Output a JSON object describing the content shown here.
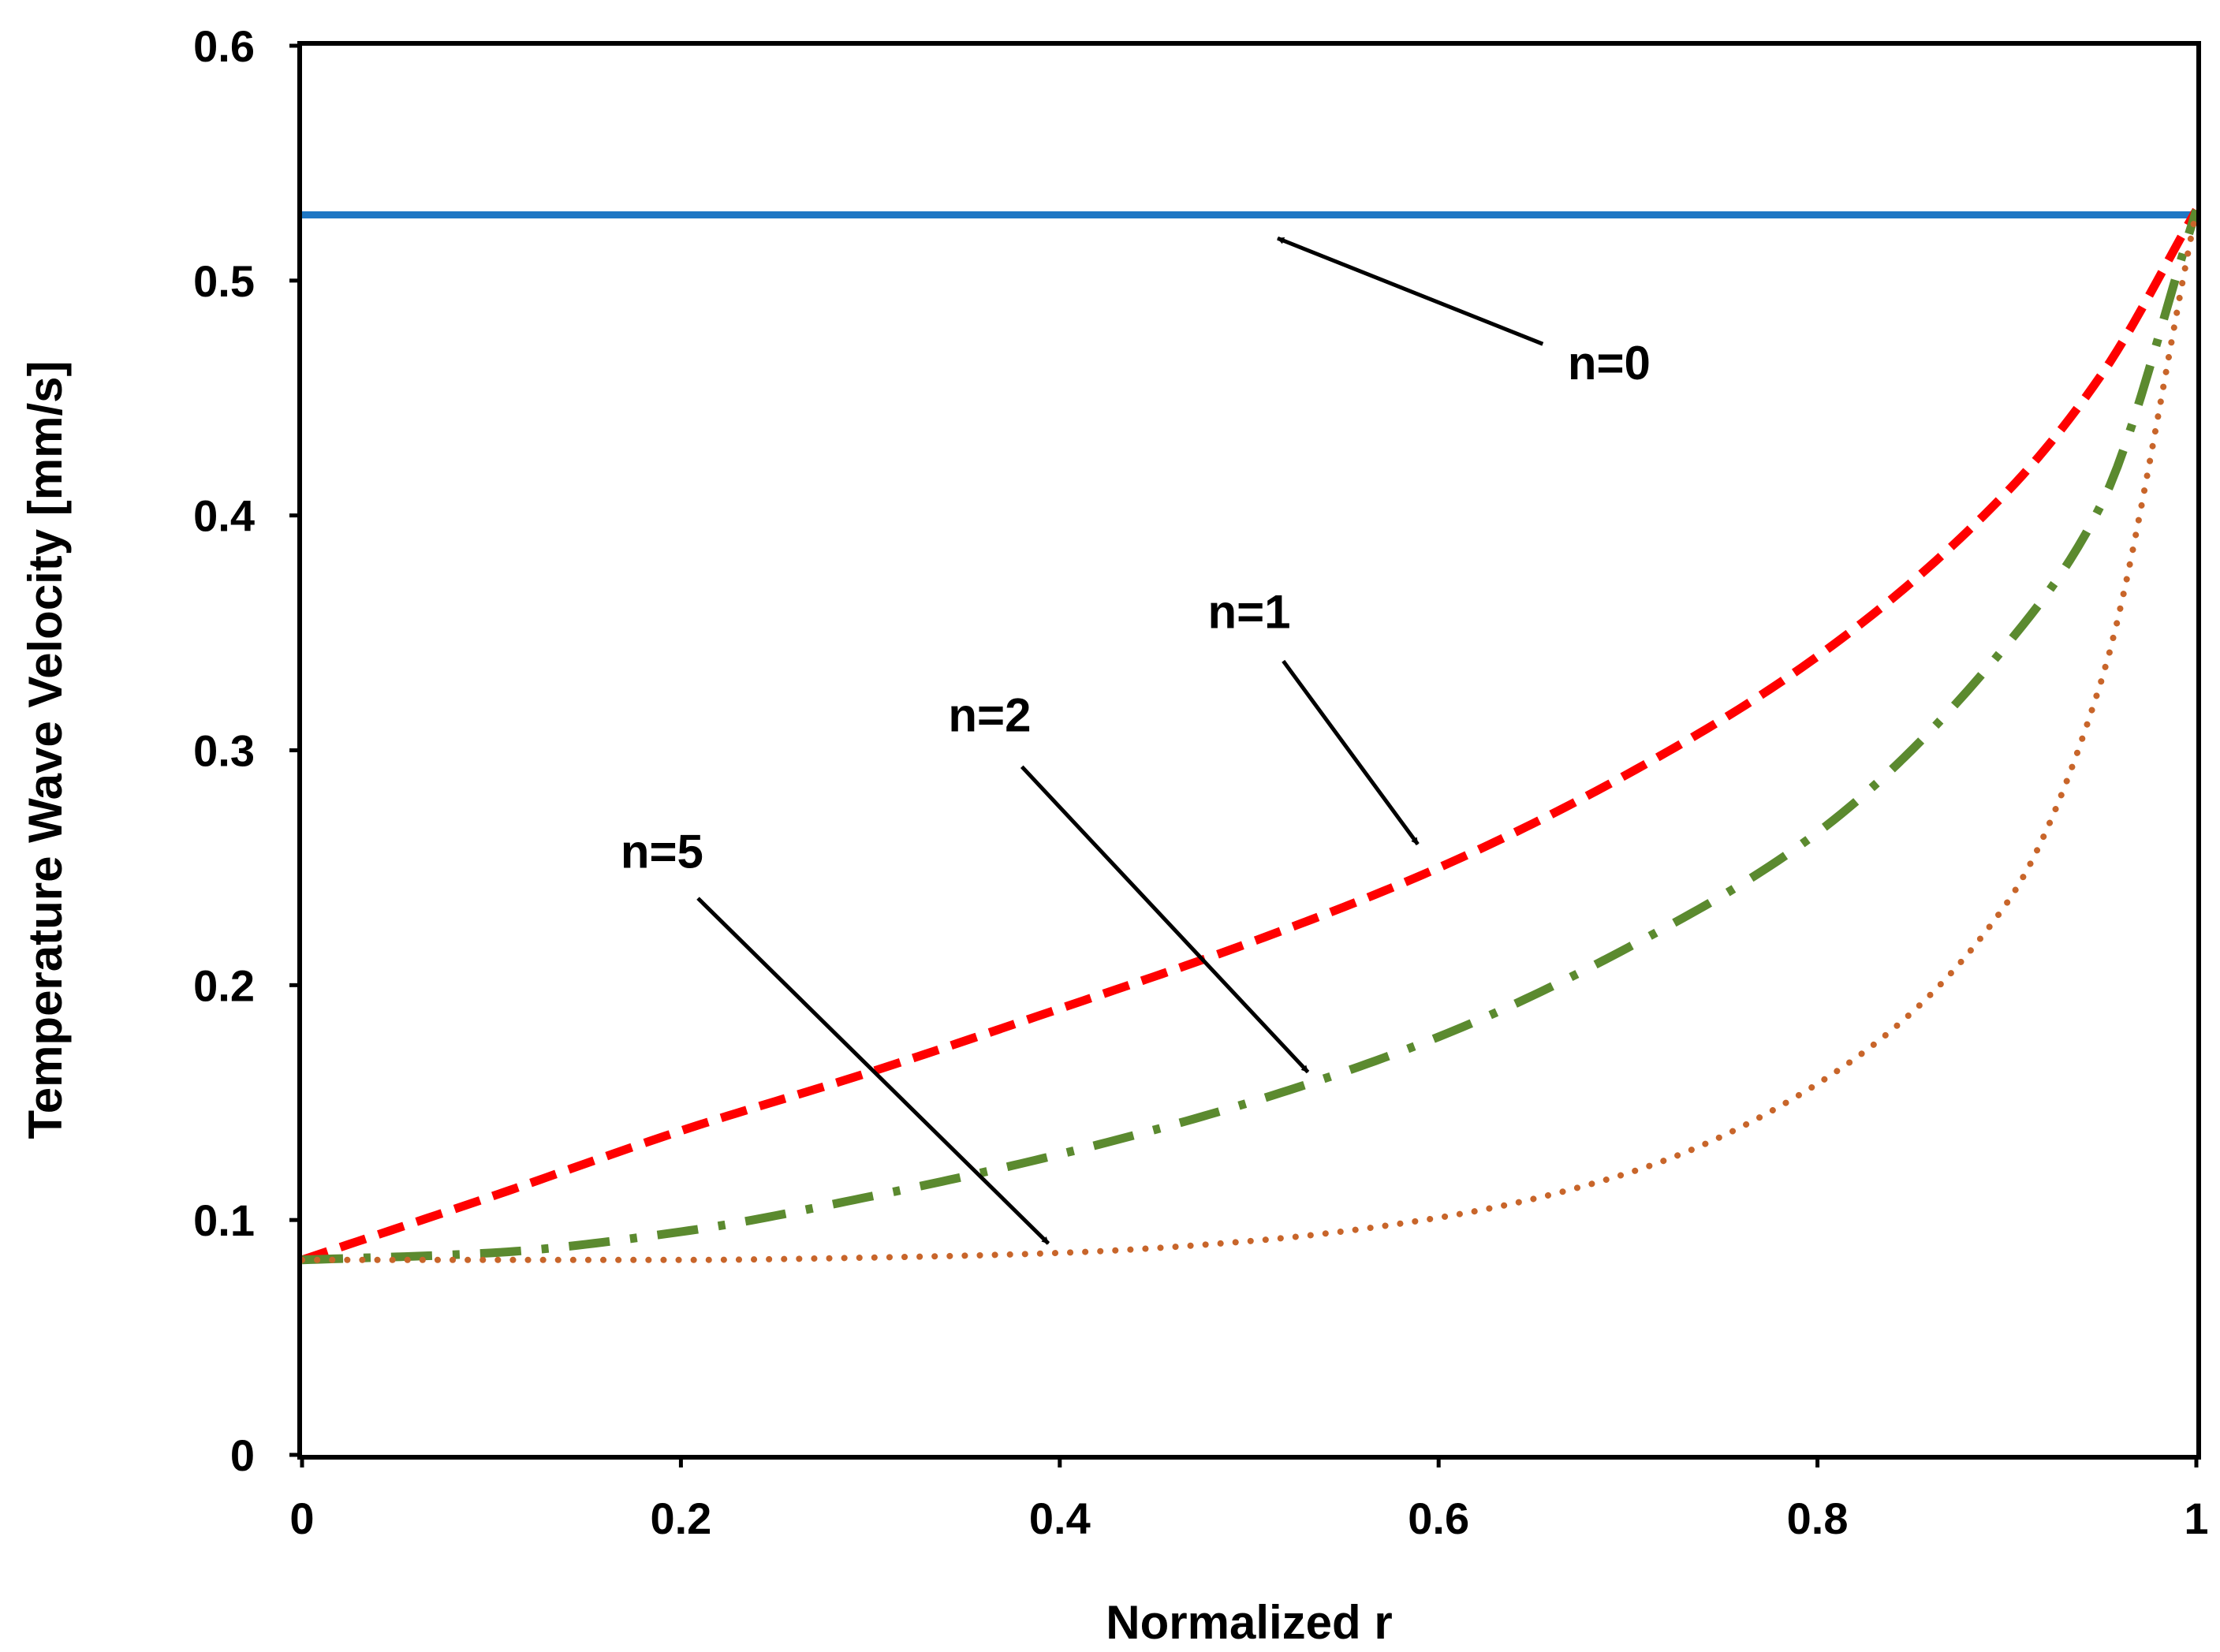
{
  "chart_data": {
    "type": "line",
    "title": "",
    "xlabel": "Normalized r",
    "ylabel": "Temperature Wave Velocity [mm/s]",
    "xlim": [
      0,
      1
    ],
    "ylim": [
      0,
      0.6
    ],
    "grid": false,
    "x_ticks": [
      0,
      0.2,
      0.4,
      0.6,
      0.8,
      1
    ],
    "x_tick_labels": [
      "0",
      "0.2",
      "0.4",
      "0.6",
      "0.8",
      "1"
    ],
    "y_ticks": [
      0,
      0.1,
      0.2,
      0.3,
      0.4,
      0.5,
      0.6
    ],
    "y_tick_labels": [
      "0",
      "0.1",
      "0.2",
      "0.3",
      "0.4",
      "0.5",
      "0.6"
    ],
    "x": [
      0,
      0.1,
      0.2,
      0.3,
      0.4,
      0.5,
      0.6,
      0.7,
      0.8,
      0.9,
      0.95,
      1.0
    ],
    "series": [
      {
        "name": "n=0",
        "color": "#1f77c4",
        "style": "solid",
        "values": [
          0.528,
          0.528,
          0.528,
          0.528,
          0.528,
          0.528,
          0.528,
          0.528,
          0.528,
          0.528,
          0.528,
          0.528
        ]
      },
      {
        "name": "n=1",
        "color": "#ff0000",
        "style": "dashed",
        "values": [
          0.083,
          0.11,
          0.138,
          0.163,
          0.19,
          0.218,
          0.25,
          0.29,
          0.34,
          0.41,
          0.46,
          0.53
        ]
      },
      {
        "name": "n=2",
        "color": "#5b8a2f",
        "style": "dashdot",
        "values": [
          0.083,
          0.086,
          0.095,
          0.11,
          0.128,
          0.15,
          0.178,
          0.216,
          0.265,
          0.345,
          0.405,
          0.53
        ]
      },
      {
        "name": "n=5",
        "color": "#c8652a",
        "style": "dotted",
        "values": [
          0.083,
          0.083,
          0.083,
          0.084,
          0.086,
          0.091,
          0.101,
          0.12,
          0.158,
          0.235,
          0.33,
          0.53
        ]
      }
    ],
    "annotations": [
      {
        "text": "n=0",
        "text_x": 0.69,
        "text_y": 0.458,
        "arrow_from": [
          0.655,
          0.473
        ],
        "arrow_to": [
          0.515,
          0.518
        ]
      },
      {
        "text": "n=1",
        "text_x": 0.5,
        "text_y": 0.352,
        "arrow_from": [
          0.518,
          0.338
        ],
        "arrow_to": [
          0.589,
          0.26
        ]
      },
      {
        "text": "n=2",
        "text_x": 0.363,
        "text_y": 0.308,
        "arrow_from": [
          0.38,
          0.293
        ],
        "arrow_to": [
          0.531,
          0.163
        ]
      },
      {
        "text": "n=5",
        "text_x": 0.19,
        "text_y": 0.25,
        "arrow_from": [
          0.209,
          0.237
        ],
        "arrow_to": [
          0.394,
          0.09
        ]
      }
    ]
  }
}
